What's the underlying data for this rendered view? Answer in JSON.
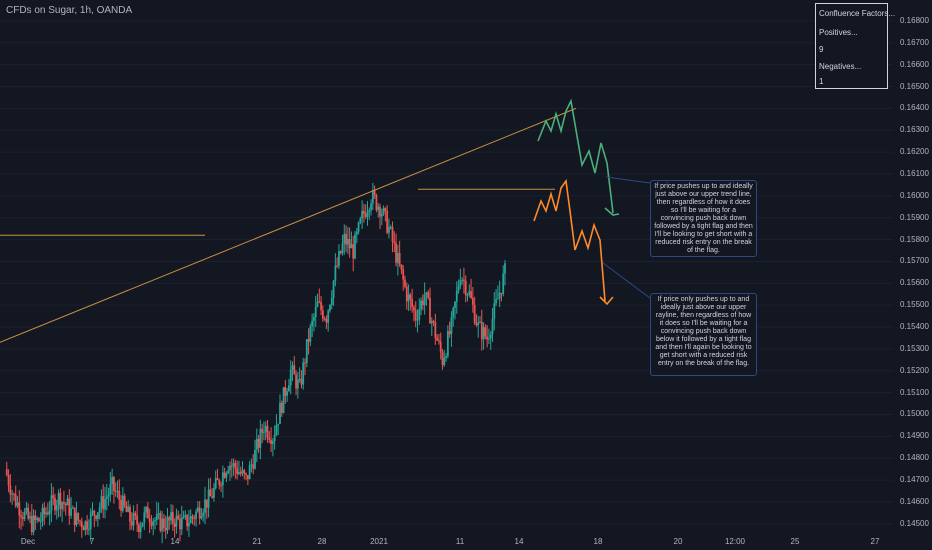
{
  "header": {
    "title": "CFDs on Sugar, 1h, OANDA"
  },
  "confluence": {
    "title": "Confluence Factors...",
    "positives_label": "Positives...",
    "positives_value": "9",
    "negatives_label": "Negatives...",
    "negatives_value": "1"
  },
  "notes": {
    "upper": "If price pushes up to and ideally just above our upper trend line, then regardless of how it does so I'll be waiting for a convincing push back down followed by a tight flag and then I'll be looking to get short with a reduced risk entry on the break of the flag.",
    "lower": "If price only pushes up to and ideally just above our upper rayline, then regardless of how it does so I'll be waiting for a convincing push back down below it followed by a tight flag and then I'll again be looking to get short with a reduced risk entry on the break of the flag."
  },
  "colors": {
    "background": "#131722",
    "up_candle": "#26a69a",
    "down_candle": "#ef5350",
    "trend_line": "#c8913f",
    "green_projection": "#4caf7a",
    "orange_projection": "#ff8a27",
    "note_border": "#2a4a86"
  },
  "chart_data": {
    "type": "candlestick",
    "y_axis_position": "right",
    "ylim": [
      0.1449,
      0.1685
    ],
    "y_ticks": [
      "0.16800",
      "0.16700",
      "0.16600",
      "0.16500",
      "0.16400",
      "0.16300",
      "0.16200",
      "0.16100",
      "0.16000",
      "0.15900",
      "0.15800",
      "0.15700",
      "0.15600",
      "0.15500",
      "0.15400",
      "0.15300",
      "0.15200",
      "0.15100",
      "0.15000",
      "0.14900",
      "0.14800",
      "0.14700",
      "0.14600",
      "0.14500"
    ],
    "x_ticks": [
      "Dec",
      "7",
      "14",
      "21",
      "28",
      "2021",
      "11",
      "14",
      "18",
      "20",
      "12:00",
      "25",
      "27"
    ],
    "price_path": [
      [
        0,
        0.1475
      ],
      [
        1,
        0.1462
      ],
      [
        2,
        0.1455
      ],
      [
        3,
        0.145
      ],
      [
        4,
        0.1452
      ],
      [
        5,
        0.1458
      ],
      [
        6,
        0.1462
      ],
      [
        7,
        0.1458
      ],
      [
        8,
        0.1452
      ],
      [
        9,
        0.145
      ],
      [
        10,
        0.1455
      ],
      [
        11,
        0.146
      ],
      [
        12,
        0.1467
      ],
      [
        13,
        0.146
      ],
      [
        14,
        0.1452
      ],
      [
        15,
        0.145
      ],
      [
        16,
        0.1455
      ],
      [
        17,
        0.1451
      ],
      [
        18,
        0.145
      ],
      [
        19,
        0.1452
      ],
      [
        20,
        0.145
      ],
      [
        21,
        0.1453
      ],
      [
        22,
        0.1458
      ],
      [
        23,
        0.1462
      ],
      [
        24,
        0.147
      ],
      [
        25,
        0.1478
      ],
      [
        26,
        0.1475
      ],
      [
        27,
        0.147
      ],
      [
        28,
        0.1482
      ],
      [
        29,
        0.1495
      ],
      [
        30,
        0.149
      ],
      [
        31,
        0.1505
      ],
      [
        32,
        0.152
      ],
      [
        33,
        0.1512
      ],
      [
        34,
        0.1535
      ],
      [
        35,
        0.155
      ],
      [
        36,
        0.1545
      ],
      [
        37,
        0.1565
      ],
      [
        38,
        0.158
      ],
      [
        39,
        0.1575
      ],
      [
        40,
        0.159
      ],
      [
        41,
        0.16
      ],
      [
        42,
        0.1595
      ],
      [
        43,
        0.1585
      ],
      [
        44,
        0.157
      ],
      [
        45,
        0.1555
      ],
      [
        46,
        0.1545
      ],
      [
        47,
        0.1555
      ],
      [
        48,
        0.154
      ],
      [
        49,
        0.1525
      ],
      [
        50,
        0.154
      ],
      [
        51,
        0.1565
      ],
      [
        52,
        0.1555
      ],
      [
        53,
        0.154
      ],
      [
        54,
        0.1535
      ],
      [
        55,
        0.155
      ],
      [
        56,
        0.1565
      ]
    ],
    "lines": [
      {
        "name": "horizontal-level-left",
        "from": [
          0,
          0.1582
        ],
        "to": [
          12,
          0.1582
        ]
      },
      {
        "name": "upper-trend-line",
        "from": [
          0,
          0.1533
        ],
        "to": [
          33,
          0.164
        ]
      },
      {
        "name": "horizontal-level-top",
        "from": [
          24,
          0.1603
        ],
        "to": [
          33,
          0.1603
        ]
      }
    ]
  }
}
